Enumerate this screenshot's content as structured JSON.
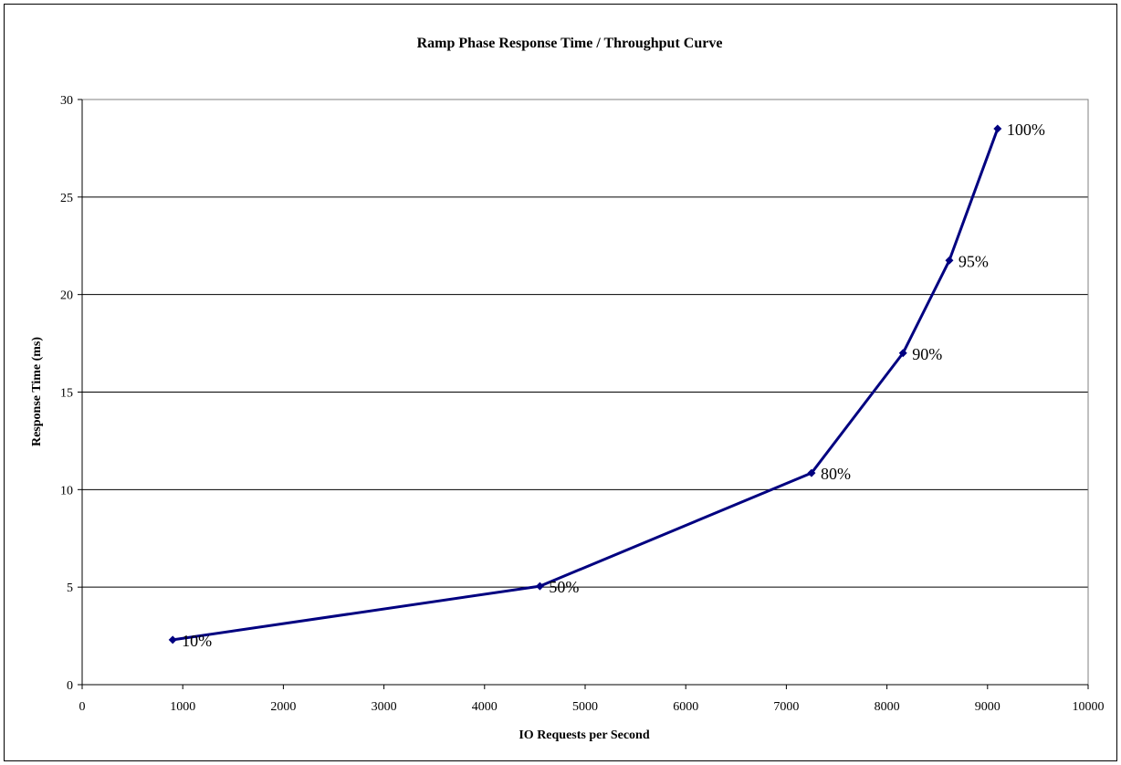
{
  "chart_data": {
    "type": "line",
    "title": "Ramp Phase Response Time / Throughput Curve",
    "xlabel": "IO Requests per Second",
    "ylabel": "Response Time (ms)",
    "xlim": [
      0,
      10000
    ],
    "ylim": [
      0,
      30
    ],
    "x_ticks": [
      0,
      1000,
      2000,
      3000,
      4000,
      5000,
      6000,
      7000,
      8000,
      9000,
      10000
    ],
    "y_ticks": [
      0,
      5,
      10,
      15,
      20,
      25,
      30
    ],
    "grid": "horizontal",
    "line_color": "#000080",
    "series": [
      {
        "points": [
          {
            "x": 900,
            "y": 2.3,
            "label": "10%"
          },
          {
            "x": 4550,
            "y": 5.05,
            "label": "50%"
          },
          {
            "x": 7250,
            "y": 10.85,
            "label": "80%"
          },
          {
            "x": 8160,
            "y": 17.0,
            "label": "90%"
          },
          {
            "x": 8620,
            "y": 21.75,
            "label": "95%"
          },
          {
            "x": 9100,
            "y": 28.5,
            "label": "100%"
          }
        ]
      }
    ]
  }
}
